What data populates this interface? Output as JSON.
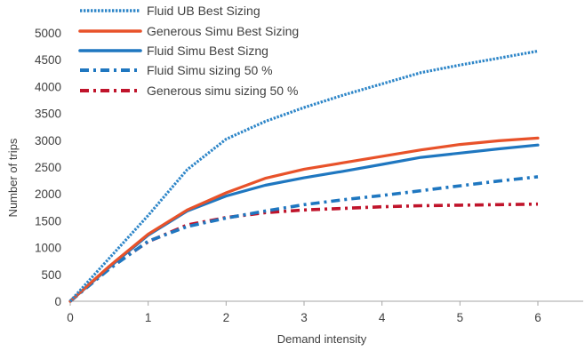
{
  "chart_data": {
    "type": "line",
    "xlabel": "Demand intensity",
    "ylabel": "Number of trips",
    "xlim": [
      0,
      6
    ],
    "ylim": [
      0,
      5000
    ],
    "x_ticks": [
      "0",
      "1",
      "2",
      "3",
      "4",
      "5",
      "6"
    ],
    "y_ticks": [
      "0",
      "500",
      "1000",
      "1500",
      "2000",
      "2500",
      "3000",
      "3500",
      "4000",
      "4500",
      "5000"
    ],
    "grid": false,
    "legend_position": "top-left",
    "series": [
      {
        "name": "Fluid UB Best Sizing",
        "color": "#2e86c8",
        "dash": "dotted",
        "x": [
          0,
          0.5,
          1,
          1.5,
          2,
          2.5,
          3,
          3.5,
          4,
          4.5,
          5,
          5.5,
          6
        ],
        "y": [
          0,
          800,
          1600,
          2450,
          3020,
          3350,
          3610,
          3840,
          4050,
          4260,
          4400,
          4530,
          4660
        ]
      },
      {
        "name": "Generous Simu Best Sizing",
        "color": "#e8522a",
        "dash": "solid",
        "x": [
          0,
          0.5,
          1,
          1.5,
          2,
          2.5,
          3,
          3.5,
          4,
          4.5,
          5,
          5.5,
          6
        ],
        "y": [
          0,
          650,
          1250,
          1700,
          2020,
          2290,
          2460,
          2580,
          2700,
          2820,
          2920,
          2990,
          3040
        ]
      },
      {
        "name": "Fluid Simu Best Sizng",
        "color": "#1f77c0",
        "dash": "solid",
        "x": [
          0,
          0.5,
          1,
          1.5,
          2,
          2.5,
          3,
          3.5,
          4,
          4.5,
          5,
          5.5,
          6
        ],
        "y": [
          0,
          630,
          1230,
          1680,
          1960,
          2160,
          2300,
          2420,
          2550,
          2680,
          2760,
          2840,
          2910
        ]
      },
      {
        "name": "Fluid Simu sizing 50 %",
        "color": "#1f77c0",
        "dash": "dash-dot",
        "x": [
          0,
          0.5,
          1,
          1.5,
          2,
          2.5,
          3,
          3.5,
          4,
          4.5,
          5,
          5.5,
          6
        ],
        "y": [
          0,
          600,
          1120,
          1390,
          1550,
          1680,
          1800,
          1890,
          1970,
          2060,
          2150,
          2240,
          2320
        ]
      },
      {
        "name": "Generous simu sizing 50 %",
        "color": "#c0142b",
        "dash": "dash-dot",
        "x": [
          0,
          0.5,
          1,
          1.5,
          2,
          2.5,
          3,
          3.5,
          4,
          4.5,
          5,
          5.5,
          6
        ],
        "y": [
          0,
          620,
          1110,
          1420,
          1560,
          1650,
          1700,
          1730,
          1760,
          1780,
          1790,
          1800,
          1810
        ]
      }
    ]
  }
}
